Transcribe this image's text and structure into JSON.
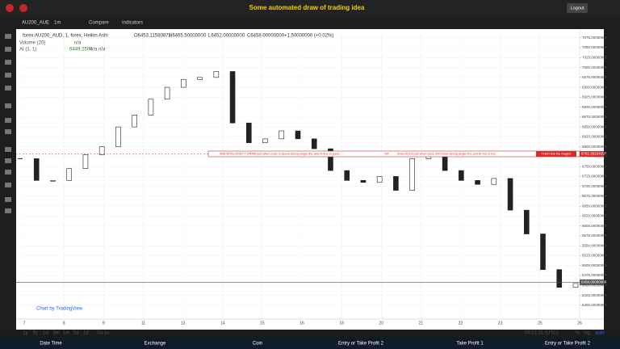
{
  "header": {
    "title": "Some automated draw of trading idea",
    "logout": "Logout"
  },
  "toolbar": {
    "symbol": "AU200_AUE",
    "interval": "1m",
    "compare": "Compare",
    "indicators": "Indicators"
  },
  "legend": {
    "symbol": "forex:AU200_AUD, 1, forex, Heikin Ashi",
    "open": "O6453.11580871",
    "high": "H6465.50000000",
    "low": "L6452.00000000",
    "close": "C6458.00000000",
    "change": "+1.50000000 (+0.02%)",
    "volume": "Volume (20)",
    "volume_value": "n/a",
    "ai": "AI (1, 1)",
    "ai_value": "6449.2500",
    "ai_na": "n/a n/a"
  },
  "chart_data": {
    "type": "candlestick",
    "closes": [
      6770,
      6715,
      6715,
      6745,
      6780,
      6800,
      6850,
      6880,
      6920,
      6950,
      6970,
      6975,
      6990,
      6860,
      6810,
      6820,
      6840,
      6820,
      6795,
      6740,
      6715,
      6710,
      6725,
      6690,
      6770,
      6780,
      6740,
      6715,
      6705,
      6720,
      6640,
      6580,
      6490,
      6445,
      6455
    ],
    "ylim": [
      6365,
      7097
    ],
    "yticks": [
      {
        "value": 7075,
        "label": "7075.00000000"
      },
      {
        "value": 7050,
        "label": "7050.00000000"
      },
      {
        "value": 7025,
        "label": "7025.00000000"
      },
      {
        "value": 7000,
        "label": "7000.00000000"
      },
      {
        "value": 6975,
        "label": "6975.00000000"
      },
      {
        "value": 6950,
        "label": "6950.00000000"
      },
      {
        "value": 6925,
        "label": "6925.00000000"
      },
      {
        "value": 6900,
        "label": "6900.00000000"
      },
      {
        "value": 6875,
        "label": "6875.00000000"
      },
      {
        "value": 6850,
        "label": "6850.00000000"
      },
      {
        "value": 6825,
        "label": "6825.00000000"
      },
      {
        "value": 6800,
        "label": "6800.00000000"
      },
      {
        "value": 6775,
        "label": "6775.00000000"
      },
      {
        "value": 6750,
        "label": "6750.00000000"
      },
      {
        "value": 6725,
        "label": "6725.00000000"
      },
      {
        "value": 6700,
        "label": "6700.00000000"
      },
      {
        "value": 6675,
        "label": "6675.00000000"
      },
      {
        "value": 6650,
        "label": "6650.00000000"
      },
      {
        "value": 6625,
        "label": "6625.00000000"
      },
      {
        "value": 6600,
        "label": "6600.00000000"
      },
      {
        "value": 6575,
        "label": "6575.00000000"
      },
      {
        "value": 6550,
        "label": "6550.00000000"
      },
      {
        "value": 6525,
        "label": "6525.00000000"
      },
      {
        "value": 6500,
        "label": "6500.00000000"
      },
      {
        "value": 6475,
        "label": "6475.00000000"
      },
      {
        "value": 6450,
        "label": "6450.00000000"
      },
      {
        "value": 6425,
        "label": "6425.00000000"
      },
      {
        "value": 6400,
        "label": "6400.00000000"
      }
    ],
    "xticks": [
      "7",
      "8",
      "9",
      "11",
      "13",
      "14",
      "15",
      "16",
      "18",
      "20",
      "21",
      "22",
      "23",
      "25",
      "26"
    ],
    "levels": [
      {
        "value": 6781.95234297,
        "label": "6781.95234297",
        "color": "#d32f2f"
      },
      {
        "value": 6458,
        "label": "6458.00000000",
        "color": "#555555"
      }
    ],
    "annotation": {
      "value": 6781.95234297,
      "text1": "Wait till the END!! 7 DRAW just when price is above strong angle line and AI line is green",
      "or": "OR",
      "text2": "draw shorts just when price still below strong angle line and AI line is red",
      "cta": "THEN line the magic!!"
    },
    "watermark": "Chart by TradingView",
    "grid": true
  },
  "bottombar": {
    "ranges": [
      "1y",
      "5y",
      "1d",
      "3m",
      "1m",
      "5d",
      "1d"
    ],
    "goto": "Go to...",
    "time": "09:21:31 (UTC)",
    "percent": "%",
    "log": "log",
    "auto": "auto"
  },
  "footer": [
    "Date Time",
    "Exchange",
    "Coin",
    "Entry or Take Profit 2",
    "Take Profit 1",
    "Entry or Take Profit 2"
  ]
}
